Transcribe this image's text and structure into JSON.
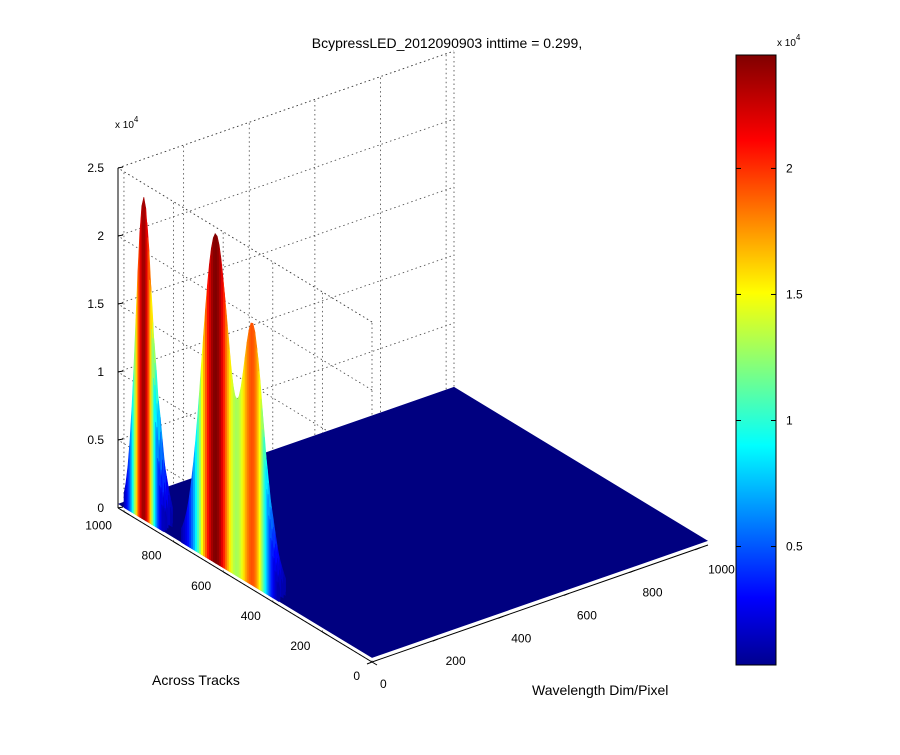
{
  "chart_data": {
    "type": "surface",
    "title": "BcypressLED_2012090903 inttime = 0.299,",
    "xlabel": "Wavelength Dim/Pixel",
    "ylabel": "Across Tracks",
    "zlabel": "",
    "xlim": [
      0,
      1024
    ],
    "ylim": [
      0,
      1024
    ],
    "zlim": [
      0,
      25000
    ],
    "x_ticks": [
      "0",
      "200",
      "400",
      "600",
      "800",
      "1000"
    ],
    "y_ticks": [
      "0",
      "200",
      "400",
      "600",
      "800",
      "1000"
    ],
    "z_ticks": [
      "0",
      "0.5",
      "1",
      "1.5",
      "2",
      "2.5"
    ],
    "z_multiplier": {
      "base": "x 10",
      "exp": "4"
    },
    "grid": true,
    "colormap": "jet",
    "peaks": [
      {
        "across_track": 920,
        "peak_z": 24000
      },
      {
        "across_track": 630,
        "peak_z": 24500
      },
      {
        "across_track": 480,
        "peak_z": 19000
      }
    ],
    "colorbar": {
      "ticks": [
        "0.5",
        "1",
        "1.5",
        "2"
      ],
      "tick_values": [
        5000,
        10000,
        15000,
        20000
      ],
      "range": [
        300,
        24500
      ],
      "multiplier": {
        "base": "x 10",
        "exp": "4"
      }
    }
  }
}
